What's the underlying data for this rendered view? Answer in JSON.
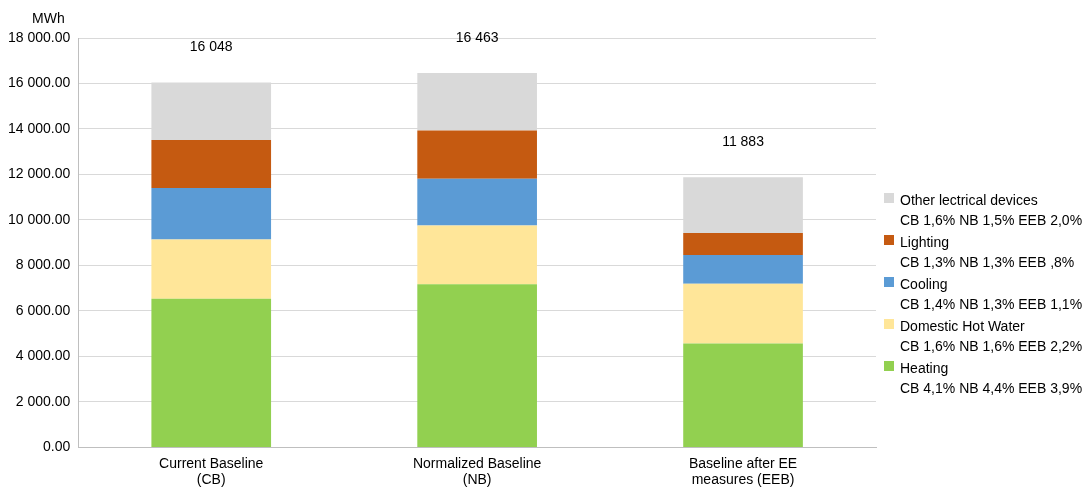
{
  "chart_data": {
    "type": "bar",
    "stacked": true,
    "ylabel": "MWh",
    "categories": [
      "Current Baseline\n(CB)",
      "Normalized Baseline\n(NB)",
      "Baseline after EE\nmeasures (EEB)"
    ],
    "series": [
      {
        "name": "Heating\nCB 4,1% NB 4,4% EEB 3,9%",
        "color": "#92d050",
        "values": [
          6540,
          7170,
          4570
        ]
      },
      {
        "name": "Domestic Hot Water\nCB 1,6% NB 1,6% EEB 2,2%",
        "color": "#ffe699",
        "values": [
          2600,
          2590,
          2620
        ]
      },
      {
        "name": "Cooling\nCB 1,4% NB 1,3% EEB 1,1%",
        "color": "#5b9bd5",
        "values": [
          2270,
          2050,
          1270
        ]
      },
      {
        "name": "Lighting\nCB 1,3% NB 1,3% EEB ,8%",
        "color": "#c55a11",
        "values": [
          2100,
          2120,
          970
        ]
      },
      {
        "name": "Other lectrical devices\nCB 1,6% NB 1,5% EEB 2,0%",
        "color": "#d9d9d9",
        "values": [
          2538,
          2533,
          2453
        ]
      }
    ],
    "totals": [
      "16 048",
      "16 463",
      "11 883"
    ],
    "ylim": [
      0,
      18000
    ],
    "yticks": [
      {
        "value": 0,
        "label": "0.00"
      },
      {
        "value": 2000,
        "label": "2 000.00"
      },
      {
        "value": 4000,
        "label": "4 000.00"
      },
      {
        "value": 6000,
        "label": "6 000.00"
      },
      {
        "value": 8000,
        "label": "8 000.00"
      },
      {
        "value": 10000,
        "label": "10 000.00"
      },
      {
        "value": 12000,
        "label": "12 000.00"
      },
      {
        "value": 14000,
        "label": "14 000.00"
      },
      {
        "value": 16000,
        "label": "16 000.00"
      },
      {
        "value": 18000,
        "label": "18 000.00"
      }
    ],
    "grid": "y",
    "legend": "right"
  }
}
